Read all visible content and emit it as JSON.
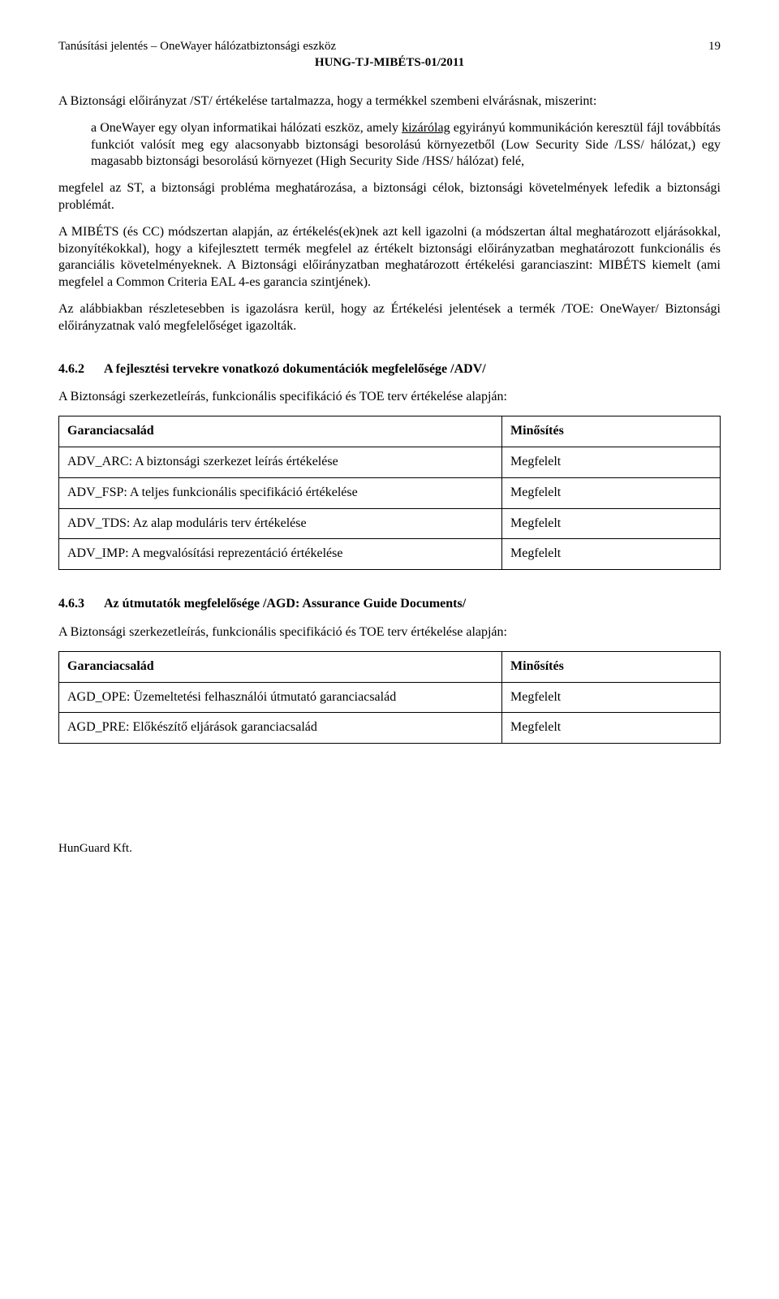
{
  "header": {
    "title_left": "Tanúsítási jelentés – OneWayer hálózatbiztonsági eszköz",
    "page_number": "19",
    "sub": "HUNG-TJ-MIBÉTS-01/2011"
  },
  "intro": "A Biztonsági előirányzat /ST/ értékelése tartalmazza, hogy a termékkel szembeni elvárásnak, miszerint:",
  "indent": {
    "pre": "a OneWayer egy olyan informatikai hálózati eszköz, amely ",
    "underlined": "kizárólag",
    "post": " egyirányú kommunikáción keresztül fájl továbbítás funkciót valósít meg egy alacsonyabb biztonsági besorolású környezetből (Low Security Side /LSS/ hálózat,) egy magasabb biztonsági besorolású környezet (High Security Side /HSS/ hálózat) felé,"
  },
  "para2": "megfelel az ST, a biztonsági probléma meghatározása, a biztonsági célok, biztonsági követelmények lefedik a biztonsági problémát.",
  "para3": "A MIBÉTS (és CC) módszertan alapján, az értékelés(ek)nek azt kell igazolni (a módszertan által meghatározott eljárásokkal, bizonyítékokkal), hogy a kifejlesztett termék megfelel az értékelt biztonsági előirányzatban meghatározott funkcionális és garanciális követelményeknek. A Biztonsági előirányzatban meghatározott értékelési garanciaszint: MIBÉTS kiemelt (ami megfelel a Common Criteria EAL 4-es garancia szintjének).",
  "para4": "Az alábbiakban részletesebben is igazolásra kerül, hogy az Értékelési jelentések a termék /TOE: OneWayer/ Biztonsági előirányzatnak való megfelelőséget igazolták.",
  "section462": {
    "num": "4.6.2",
    "title": "A fejlesztési tervekre vonatkozó dokumentációk megfelelősége /ADV/",
    "intro": "A Biztonsági szerkezetleírás, funkcionális specifikáció és TOE terv értékelése alapján:",
    "col1": "Garanciacsalád",
    "col2": "Minősítés",
    "rows": [
      {
        "label": "ADV_ARC: A biztonsági szerkezet leírás értékelése",
        "result": "Megfelelt"
      },
      {
        "label": "ADV_FSP: A teljes funkcionális specifikáció értékelése",
        "result": "Megfelelt"
      },
      {
        "label": "ADV_TDS: Az alap moduláris terv értékelése",
        "result": "Megfelelt"
      },
      {
        "label": "ADV_IMP: A megvalósítási reprezentáció értékelése",
        "result": "Megfelelt"
      }
    ]
  },
  "section463": {
    "num": "4.6.3",
    "title": "Az útmutatók megfelelősége /AGD: Assurance Guide Documents/",
    "intro": "A Biztonsági szerkezetleírás, funkcionális specifikáció és TOE terv értékelése alapján:",
    "col1": "Garanciacsalád",
    "col2": "Minősítés",
    "rows": [
      {
        "label": "AGD_OPE: Üzemeltetési felhasználói útmutató garanciacsalád",
        "result": "Megfelelt"
      },
      {
        "label": "AGD_PRE: Előkészítő eljárások garanciacsalád",
        "result": "Megfelelt"
      }
    ]
  },
  "footer": "HunGuard Kft."
}
